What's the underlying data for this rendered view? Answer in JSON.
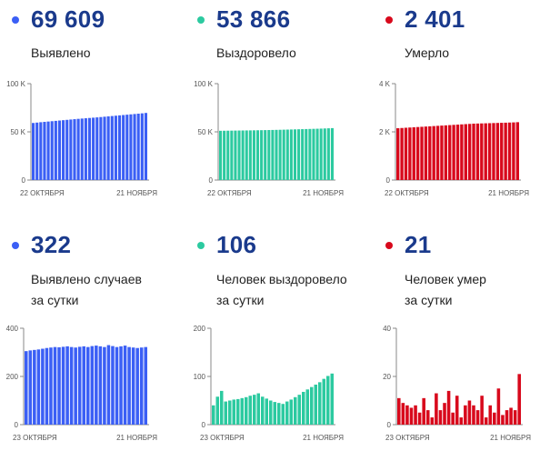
{
  "colors": {
    "blue": "#3b5ff5",
    "teal": "#2ccaa0",
    "red": "#d8091c",
    "number": "#1a3a8c"
  },
  "panels": [
    {
      "value": "69 609",
      "label_line1": "Выявлено",
      "label_line2": "",
      "color": "blue",
      "chart_data": {
        "type": "bar",
        "x_start": "22 ОКТЯБРЯ",
        "x_end": "21 НОЯБРЯ",
        "ylim": [
          0,
          100000
        ],
        "yticks": [
          "100 K",
          "50 K",
          "0"
        ],
        "values": [
          59200,
          59600,
          60000,
          60350,
          60700,
          61050,
          61400,
          61750,
          62100,
          62450,
          62800,
          63150,
          63500,
          63800,
          64100,
          64400,
          64700,
          65000,
          65350,
          65700,
          66050,
          66400,
          66750,
          67100,
          67450,
          67800,
          68150,
          68500,
          68850,
          69200,
          69609
        ]
      }
    },
    {
      "value": "53 866",
      "label_line1": "Выздоровело",
      "label_line2": "",
      "color": "teal",
      "chart_data": {
        "type": "bar",
        "x_start": "22 ОКТЯБРЯ",
        "x_end": "21 НОЯБРЯ",
        "ylim": [
          0,
          100000
        ],
        "yticks": [
          "100 K",
          "50 K",
          "0"
        ],
        "values": [
          51100,
          51150,
          51200,
          51260,
          51320,
          51380,
          51430,
          51480,
          51530,
          51590,
          51650,
          51720,
          51800,
          51880,
          51960,
          52050,
          52140,
          52240,
          52340,
          52450,
          52560,
          52680,
          52790,
          52900,
          53010,
          53120,
          53230,
          53370,
          53520,
          53690,
          53866
        ]
      }
    },
    {
      "value": "2 401",
      "label_line1": "Умерло",
      "label_line2": "",
      "color": "red",
      "chart_data": {
        "type": "bar",
        "x_start": "22 ОКТЯБРЯ",
        "x_end": "21 НОЯБРЯ",
        "ylim": [
          0,
          4000
        ],
        "yticks": [
          "4 K",
          "2 K",
          "0"
        ],
        "values": [
          2150,
          2160,
          2170,
          2180,
          2190,
          2200,
          2210,
          2220,
          2230,
          2240,
          2250,
          2260,
          2270,
          2280,
          2290,
          2300,
          2310,
          2320,
          2330,
          2340,
          2345,
          2350,
          2355,
          2360,
          2365,
          2370,
          2375,
          2380,
          2386,
          2392,
          2401
        ]
      }
    },
    {
      "value": "322",
      "label_line1": "Выявлено случаев",
      "label_line2": "за сутки",
      "color": "blue",
      "chart_data": {
        "type": "bar",
        "x_start": "23 ОКТЯБРЯ",
        "x_end": "21 НОЯБРЯ",
        "ylim": [
          0,
          400
        ],
        "yticks": [
          "400",
          "200",
          "0"
        ],
        "values": [
          305,
          308,
          310,
          312,
          315,
          318,
          320,
          322,
          321,
          323,
          325,
          322,
          320,
          323,
          325,
          322,
          326,
          328,
          325,
          322,
          330,
          326,
          322,
          325,
          328,
          322,
          320,
          318,
          320,
          322
        ]
      }
    },
    {
      "value": "106",
      "label_line1": "Человек выздоровело",
      "label_line2": "за сутки",
      "color": "teal",
      "chart_data": {
        "type": "bar",
        "x_start": "23 ОКТЯБРЯ",
        "x_end": "21 НОЯБРЯ",
        "ylim": [
          0,
          200
        ],
        "yticks": [
          "200",
          "100",
          "0"
        ],
        "values": [
          40,
          58,
          70,
          48,
          50,
          52,
          53,
          55,
          57,
          60,
          62,
          65,
          58,
          54,
          50,
          47,
          45,
          43,
          48,
          52,
          57,
          62,
          68,
          73,
          78,
          83,
          88,
          95,
          101,
          106
        ]
      }
    },
    {
      "value": "21",
      "label_line1": "Человек умер",
      "label_line2": "за сутки",
      "color": "red",
      "chart_data": {
        "type": "bar",
        "x_start": "23 ОКТЯБРЯ",
        "x_end": "21 НОЯБРЯ",
        "ylim": [
          0,
          40
        ],
        "yticks": [
          "40",
          "20",
          "0"
        ],
        "values": [
          11,
          9,
          8,
          7,
          8,
          5,
          11,
          6,
          3,
          13,
          6,
          9,
          14,
          5,
          12,
          3,
          8,
          10,
          8,
          6,
          12,
          3,
          8,
          5,
          15,
          4,
          6,
          7,
          6,
          21
        ]
      }
    }
  ]
}
